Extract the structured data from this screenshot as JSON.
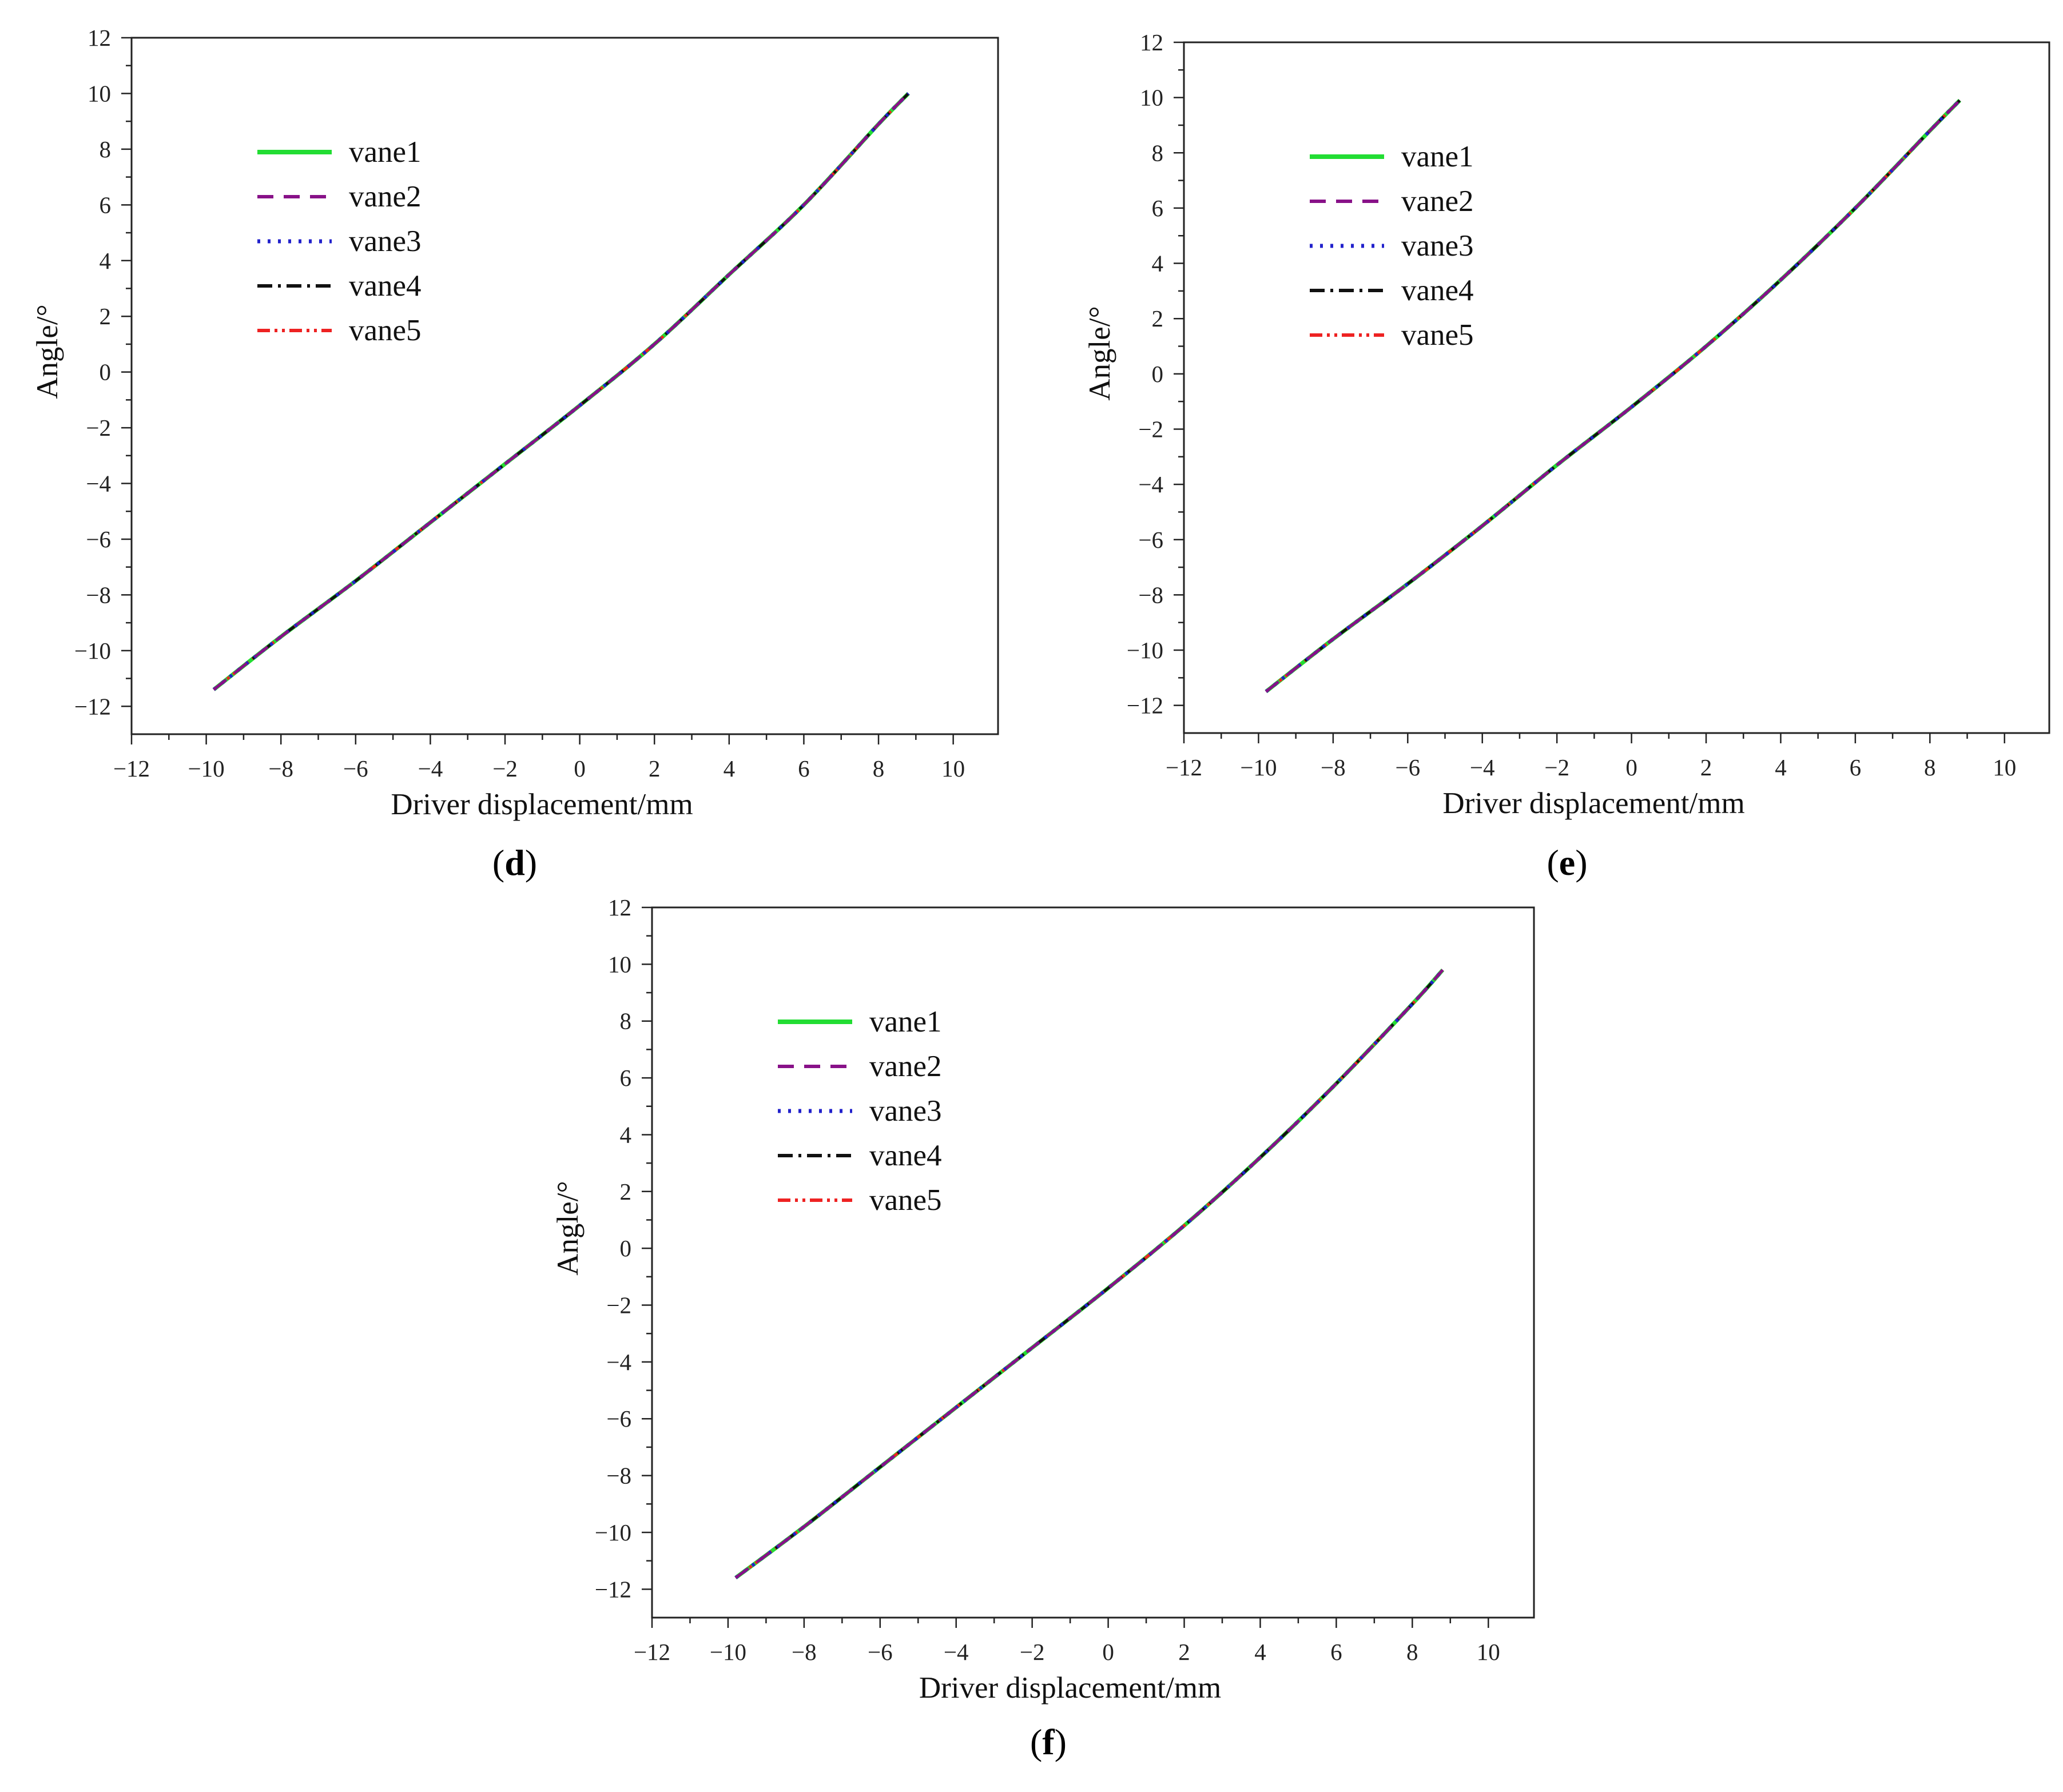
{
  "figure": {
    "panels": [
      {
        "label_open": "(",
        "label_letter": "d",
        "label_close": ")"
      },
      {
        "label_open": "(",
        "label_letter": "e",
        "label_close": ")"
      },
      {
        "label_open": "(",
        "label_letter": "f",
        "label_close": ")"
      }
    ]
  },
  "chart_data": [
    {
      "panel": "d",
      "type": "line",
      "xlabel": "Driver displacement/mm",
      "ylabel": "Angle/°",
      "xlim": [
        -12,
        11.2
      ],
      "ylim": [
        -13,
        12
      ],
      "xticks": [
        -12,
        -10,
        -8,
        -6,
        -4,
        -2,
        0,
        2,
        4,
        6,
        8,
        10
      ],
      "yticks": [
        12,
        10,
        8,
        6,
        4,
        2,
        0,
        -2,
        -4,
        -6,
        -8,
        -10,
        -12
      ],
      "grid": false,
      "legend_position": "upper-left",
      "series": [
        {
          "name": "vane1",
          "color": "#22dd33",
          "style": "solid",
          "x": [
            -9.8,
            -8,
            -6,
            -4,
            -2,
            0,
            2,
            4,
            6,
            8,
            8.8
          ],
          "y": [
            -11.4,
            -9.5,
            -7.5,
            -5.4,
            -3.3,
            -1.2,
            1.0,
            3.5,
            6.0,
            8.9,
            10.0
          ]
        },
        {
          "name": "vane2",
          "color": "#881188",
          "style": "dash",
          "x": [
            -9.8,
            -8,
            -6,
            -4,
            -2,
            0,
            2,
            4,
            6,
            8,
            8.8
          ],
          "y": [
            -11.4,
            -9.5,
            -7.5,
            -5.4,
            -3.3,
            -1.2,
            1.0,
            3.5,
            6.0,
            8.9,
            10.0
          ]
        },
        {
          "name": "vane3",
          "color": "#2222cc",
          "style": "dot",
          "x": [
            -9.8,
            -8,
            -6,
            -4,
            -2,
            0,
            2,
            4,
            6,
            8,
            8.8
          ],
          "y": [
            -11.4,
            -9.5,
            -7.5,
            -5.4,
            -3.3,
            -1.2,
            1.0,
            3.5,
            6.0,
            8.9,
            10.0
          ]
        },
        {
          "name": "vane4",
          "color": "#111111",
          "style": "dashdot",
          "x": [
            -9.8,
            -8,
            -6,
            -4,
            -2,
            0,
            2,
            4,
            6,
            8,
            8.8
          ],
          "y": [
            -11.4,
            -9.5,
            -7.5,
            -5.4,
            -3.3,
            -1.2,
            1.0,
            3.5,
            6.0,
            8.9,
            10.0
          ]
        },
        {
          "name": "vane5",
          "color": "#ee2222",
          "style": "dashdotdot",
          "x": [
            -9.8,
            -8,
            -6,
            -4,
            -2,
            0,
            2,
            4,
            6,
            8,
            8.8
          ],
          "y": [
            -11.4,
            -9.5,
            -7.5,
            -5.4,
            -3.3,
            -1.2,
            1.0,
            3.5,
            6.0,
            8.9,
            10.0
          ]
        }
      ]
    },
    {
      "panel": "e",
      "type": "line",
      "xlabel": "Driver displacement/mm",
      "ylabel": "Angle/°",
      "xlim": [
        -12,
        11.2
      ],
      "ylim": [
        -13,
        12
      ],
      "xticks": [
        -12,
        -10,
        -8,
        -6,
        -4,
        -2,
        0,
        2,
        4,
        6,
        8,
        10
      ],
      "yticks": [
        12,
        10,
        8,
        6,
        4,
        2,
        0,
        -2,
        -4,
        -6,
        -8,
        -10,
        -12
      ],
      "grid": false,
      "legend_position": "upper-left",
      "series": [
        {
          "name": "vane1",
          "color": "#22dd33",
          "style": "solid",
          "x": [
            -9.8,
            -8,
            -6,
            -4,
            -2,
            0,
            2,
            4,
            6,
            8,
            8.8
          ],
          "y": [
            -11.5,
            -9.6,
            -7.6,
            -5.5,
            -3.3,
            -1.2,
            1.0,
            3.4,
            6.0,
            8.8,
            9.9
          ]
        },
        {
          "name": "vane2",
          "color": "#881188",
          "style": "dash",
          "x": [
            -9.8,
            -8,
            -6,
            -4,
            -2,
            0,
            2,
            4,
            6,
            8,
            8.8
          ],
          "y": [
            -11.5,
            -9.6,
            -7.6,
            -5.5,
            -3.3,
            -1.2,
            1.0,
            3.4,
            6.0,
            8.8,
            9.9
          ]
        },
        {
          "name": "vane3",
          "color": "#2222cc",
          "style": "dot",
          "x": [
            -9.8,
            -8,
            -6,
            -4,
            -2,
            0,
            2,
            4,
            6,
            8,
            8.8
          ],
          "y": [
            -11.5,
            -9.6,
            -7.6,
            -5.5,
            -3.3,
            -1.2,
            1.0,
            3.4,
            6.0,
            8.8,
            9.9
          ]
        },
        {
          "name": "vane4",
          "color": "#111111",
          "style": "dashdot",
          "x": [
            -9.8,
            -8,
            -6,
            -4,
            -2,
            0,
            2,
            4,
            6,
            8,
            8.8
          ],
          "y": [
            -11.5,
            -9.6,
            -7.6,
            -5.5,
            -3.3,
            -1.2,
            1.0,
            3.4,
            6.0,
            8.8,
            9.9
          ]
        },
        {
          "name": "vane5",
          "color": "#ee2222",
          "style": "dashdotdot",
          "x": [
            -9.8,
            -8,
            -6,
            -4,
            -2,
            0,
            2,
            4,
            6,
            8,
            8.8
          ],
          "y": [
            -11.5,
            -9.6,
            -7.6,
            -5.5,
            -3.3,
            -1.2,
            1.0,
            3.4,
            6.0,
            8.8,
            9.9
          ]
        }
      ]
    },
    {
      "panel": "f",
      "type": "line",
      "xlabel": "Driver displacement/mm",
      "ylabel": "Angle/°",
      "xlim": [
        -12,
        11.2
      ],
      "ylim": [
        -13,
        12
      ],
      "xticks": [
        -12,
        -10,
        -8,
        -6,
        -4,
        -2,
        0,
        2,
        4,
        6,
        8,
        10
      ],
      "yticks": [
        12,
        10,
        8,
        6,
        4,
        2,
        0,
        -2,
        -4,
        -6,
        -8,
        -10,
        -12
      ],
      "grid": false,
      "legend_position": "upper-left",
      "series": [
        {
          "name": "vane1",
          "color": "#22dd33",
          "style": "solid",
          "x": [
            -9.8,
            -8,
            -6,
            -4,
            -2,
            0,
            2,
            4,
            6,
            8,
            8.8
          ],
          "y": [
            -11.6,
            -9.8,
            -7.7,
            -5.6,
            -3.5,
            -1.4,
            0.8,
            3.2,
            5.8,
            8.6,
            9.8
          ]
        },
        {
          "name": "vane2",
          "color": "#881188",
          "style": "dash",
          "x": [
            -9.8,
            -8,
            -6,
            -4,
            -2,
            0,
            2,
            4,
            6,
            8,
            8.8
          ],
          "y": [
            -11.6,
            -9.8,
            -7.7,
            -5.6,
            -3.5,
            -1.4,
            0.8,
            3.2,
            5.8,
            8.6,
            9.8
          ]
        },
        {
          "name": "vane3",
          "color": "#2222cc",
          "style": "dot",
          "x": [
            -9.8,
            -8,
            -6,
            -4,
            -2,
            0,
            2,
            4,
            6,
            8,
            8.8
          ],
          "y": [
            -11.6,
            -9.8,
            -7.7,
            -5.6,
            -3.5,
            -1.4,
            0.8,
            3.2,
            5.8,
            8.6,
            9.8
          ]
        },
        {
          "name": "vane4",
          "color": "#111111",
          "style": "dashdot",
          "x": [
            -9.8,
            -8,
            -6,
            -4,
            -2,
            0,
            2,
            4,
            6,
            8,
            8.8
          ],
          "y": [
            -11.6,
            -9.8,
            -7.7,
            -5.6,
            -3.5,
            -1.4,
            0.8,
            3.2,
            5.8,
            8.6,
            9.8
          ]
        },
        {
          "name": "vane5",
          "color": "#ee2222",
          "style": "dashdotdot",
          "x": [
            -9.8,
            -8,
            -6,
            -4,
            -2,
            0,
            2,
            4,
            6,
            8,
            8.8
          ],
          "y": [
            -11.6,
            -9.8,
            -7.7,
            -5.6,
            -3.5,
            -1.4,
            0.8,
            3.2,
            5.8,
            8.6,
            9.8
          ]
        }
      ]
    }
  ]
}
